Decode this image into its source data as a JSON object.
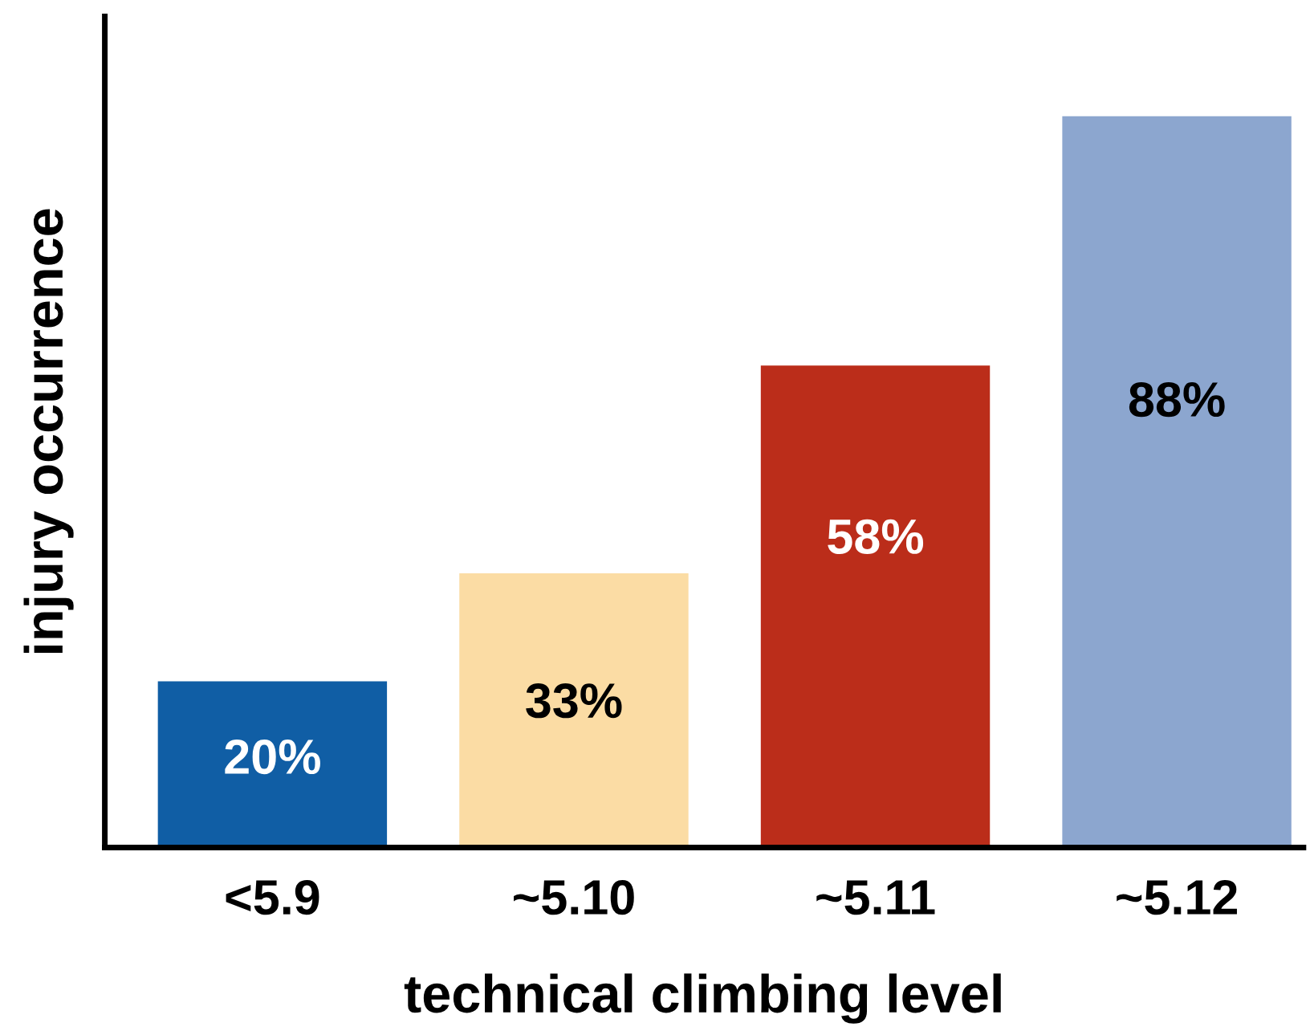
{
  "chart_data": {
    "type": "bar",
    "xlabel": "technical climbing level",
    "ylabel": "injury occurrence",
    "categories": [
      "<5.9",
      "~5.10",
      "~5.11",
      "~5.12"
    ],
    "values": [
      20,
      33,
      58,
      88
    ],
    "colors": [
      "#105ea5",
      "#fbdca4",
      "#bb2d1a",
      "#8ca6cf"
    ],
    "ylim": [
      0,
      100
    ],
    "tick_labels": "x",
    "data_labels": true,
    "value_labels": [
      "20%",
      "33%",
      "58%",
      "88%"
    ],
    "grid": false
  }
}
